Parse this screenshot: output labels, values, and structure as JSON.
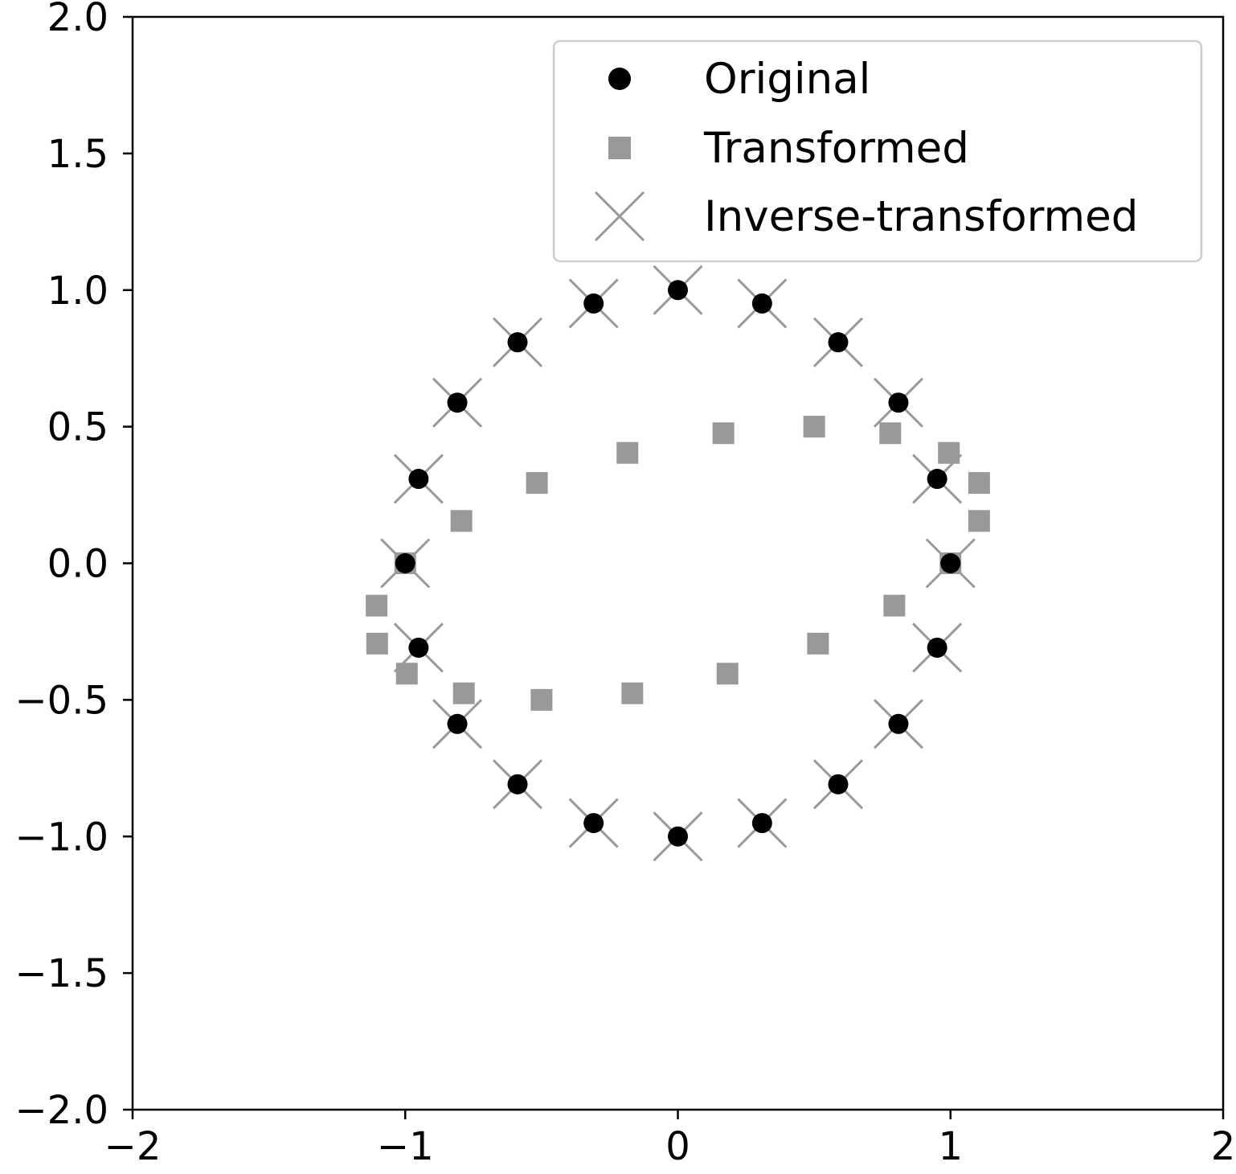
{
  "chart_data": {
    "type": "scatter",
    "title": "",
    "xlabel": "",
    "ylabel": "",
    "xlim": [
      -2,
      2
    ],
    "ylim": [
      -2,
      2
    ],
    "grid": false,
    "legend_position": "top-right",
    "x_ticks": [
      -2,
      -1,
      0,
      1,
      2
    ],
    "y_ticks": [
      -2.0,
      -1.5,
      -1.0,
      -0.5,
      0.0,
      0.5,
      1.0,
      1.5,
      2.0
    ],
    "x_tick_labels": [
      "−2",
      "−1",
      "0",
      "1",
      "2"
    ],
    "y_tick_labels": [
      "−2.0",
      "−1.5",
      "−1.0",
      "−0.5",
      "0.0",
      "0.5",
      "1.0",
      "1.5",
      "2.0"
    ],
    "series": [
      {
        "name": "Original",
        "marker": "circle",
        "color": "#000000",
        "points": [
          [
            1.0,
            0.0
          ],
          [
            0.951,
            0.309
          ],
          [
            0.809,
            0.588
          ],
          [
            0.588,
            0.809
          ],
          [
            0.309,
            0.951
          ],
          [
            0.0,
            1.0
          ],
          [
            -0.309,
            0.951
          ],
          [
            -0.588,
            0.809
          ],
          [
            -0.809,
            0.588
          ],
          [
            -0.951,
            0.309
          ],
          [
            -1.0,
            0.0
          ],
          [
            -0.951,
            -0.309
          ],
          [
            -0.809,
            -0.588
          ],
          [
            -0.588,
            -0.809
          ],
          [
            -0.309,
            -0.951
          ],
          [
            0.0,
            -1.0
          ],
          [
            0.309,
            -0.951
          ],
          [
            0.588,
            -0.809
          ],
          [
            0.809,
            -0.588
          ],
          [
            0.951,
            -0.309
          ]
        ]
      },
      {
        "name": "Transformed",
        "marker": "square",
        "color": "#999999",
        "points": [
          [
            1.0,
            0.0
          ],
          [
            1.105,
            0.155
          ],
          [
            1.105,
            0.294
          ],
          [
            0.994,
            0.404
          ],
          [
            0.779,
            0.476
          ],
          [
            0.5,
            0.5
          ],
          [
            0.167,
            0.476
          ],
          [
            -0.185,
            0.404
          ],
          [
            -0.517,
            0.294
          ],
          [
            -0.794,
            0.155
          ],
          [
            -1.0,
            0.0
          ],
          [
            -1.105,
            -0.155
          ],
          [
            -1.103,
            -0.294
          ],
          [
            -0.994,
            -0.404
          ],
          [
            -0.785,
            -0.476
          ],
          [
            -0.5,
            -0.5
          ],
          [
            -0.167,
            -0.476
          ],
          [
            0.182,
            -0.404
          ],
          [
            0.514,
            -0.294
          ],
          [
            0.794,
            -0.155
          ]
        ]
      },
      {
        "name": "Inverse-transformed",
        "marker": "x",
        "color": "#999999",
        "points": [
          [
            1.0,
            0.0
          ],
          [
            0.951,
            0.309
          ],
          [
            0.809,
            0.588
          ],
          [
            0.588,
            0.809
          ],
          [
            0.309,
            0.951
          ],
          [
            0.0,
            1.0
          ],
          [
            -0.309,
            0.951
          ],
          [
            -0.588,
            0.809
          ],
          [
            -0.809,
            0.588
          ],
          [
            -0.951,
            0.309
          ],
          [
            -1.0,
            0.0
          ],
          [
            -0.951,
            -0.309
          ],
          [
            -0.809,
            -0.588
          ],
          [
            -0.588,
            -0.809
          ],
          [
            -0.309,
            -0.951
          ],
          [
            0.0,
            -1.0
          ],
          [
            0.309,
            -0.951
          ],
          [
            0.588,
            -0.809
          ],
          [
            0.809,
            -0.588
          ],
          [
            0.951,
            -0.309
          ]
        ]
      }
    ]
  }
}
